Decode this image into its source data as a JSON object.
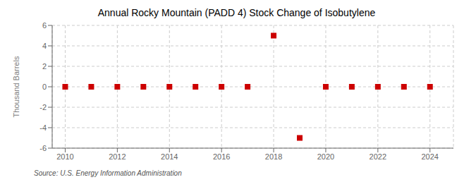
{
  "chart_data": {
    "type": "scatter",
    "title": "Annual Rocky Mountain (PADD 4) Stock Change of Isobutylene",
    "ylabel": "Thousand Barrels",
    "annotations": [
      "Source: U.S. Energy Information Administration"
    ],
    "x": [
      2010,
      2011,
      2012,
      2013,
      2014,
      2015,
      2016,
      2017,
      2018,
      2019,
      2020,
      2021,
      2022,
      2023,
      2024
    ],
    "values": [
      0,
      0,
      0,
      0,
      0,
      0,
      0,
      0,
      5,
      -5,
      0,
      0,
      0,
      0,
      0
    ],
    "color": "#cc0000",
    "marker": "square",
    "xlim": [
      2009.5,
      2024.9
    ],
    "xticks": [
      2010,
      2012,
      2014,
      2016,
      2018,
      2020,
      2022,
      2024
    ],
    "ylim": [
      -6,
      6
    ],
    "yticks": [
      -6,
      -4,
      -2,
      0,
      2,
      4,
      6
    ],
    "grid": true
  }
}
